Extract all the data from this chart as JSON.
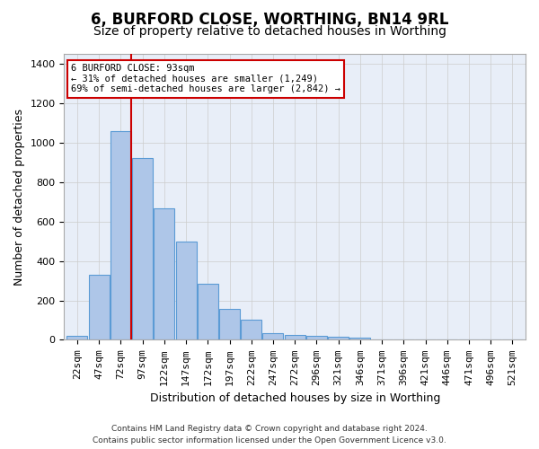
{
  "title": "6, BURFORD CLOSE, WORTHING, BN14 9RL",
  "subtitle": "Size of property relative to detached houses in Worthing",
  "xlabel": "Distribution of detached houses by size in Worthing",
  "ylabel": "Number of detached properties",
  "footer_line1": "Contains HM Land Registry data © Crown copyright and database right 2024.",
  "footer_line2": "Contains public sector information licensed under the Open Government Licence v3.0.",
  "bar_values": [
    22,
    330,
    1060,
    920,
    665,
    500,
    285,
    155,
    100,
    35,
    25,
    20,
    15,
    10,
    0,
    0,
    0,
    0,
    0,
    0,
    0
  ],
  "bin_labels": [
    "22sqm",
    "47sqm",
    "72sqm",
    "97sqm",
    "122sqm",
    "147sqm",
    "172sqm",
    "197sqm",
    "222sqm",
    "247sqm",
    "272sqm",
    "296sqm",
    "321sqm",
    "346sqm",
    "371sqm",
    "396sqm",
    "421sqm",
    "446sqm",
    "471sqm",
    "496sqm",
    "521sqm"
  ],
  "bar_color": "#aec6e8",
  "bar_edge_color": "#5b9bd5",
  "vline_color": "#cc0000",
  "annotation_text": "6 BURFORD CLOSE: 93sqm\n← 31% of detached houses are smaller (1,249)\n69% of semi-detached houses are larger (2,842) →",
  "annotation_box_color": "#ffffff",
  "annotation_box_edge": "#cc0000",
  "ylim": [
    0,
    1450
  ],
  "bg_color": "#e8eef8",
  "grid_color": "#cccccc",
  "title_fontsize": 12,
  "subtitle_fontsize": 10,
  "axis_label_fontsize": 9,
  "tick_fontsize": 8
}
